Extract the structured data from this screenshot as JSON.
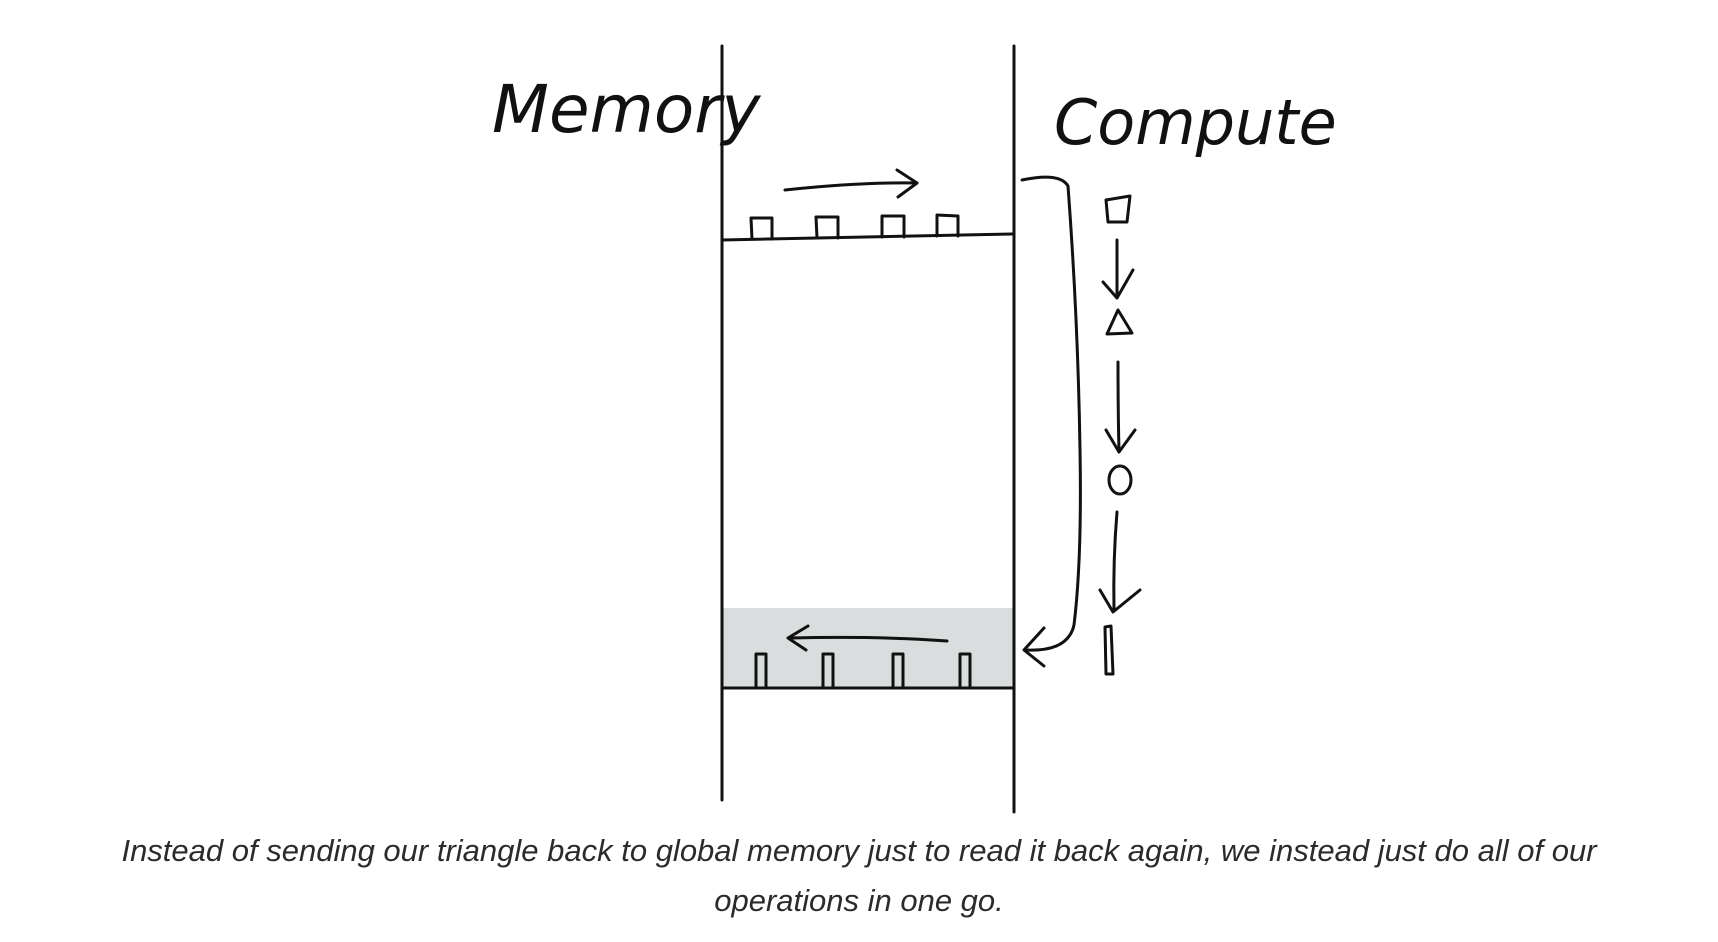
{
  "labels": {
    "left": "Memory",
    "right": "Compute"
  },
  "caption": "Instead of sending our triangle back to global memory just to read it back again, we instead just do all of our operations in one go.",
  "colors": {
    "ink": "#111111",
    "output_region_fill": "#d9dddd",
    "caption_text": "#2b2b2b"
  },
  "icons": {
    "compute_pipeline": [
      "square-icon",
      "triangle-icon",
      "circle-icon",
      "bar-icon"
    ]
  }
}
